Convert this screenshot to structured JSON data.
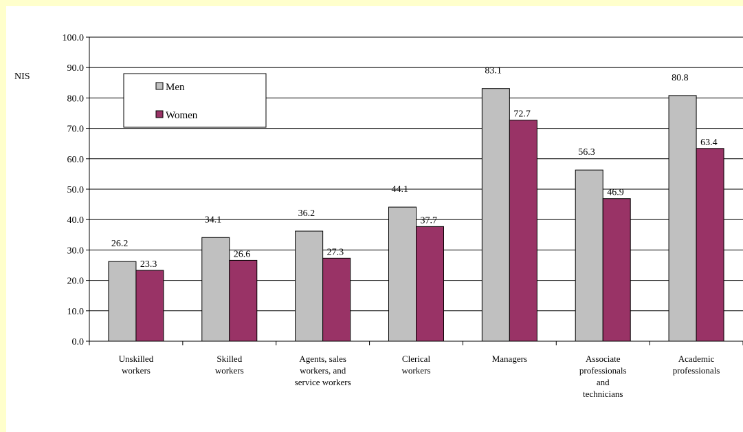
{
  "chart_data": {
    "type": "bar",
    "ylabel": "NIS",
    "ylim": [
      0,
      100
    ],
    "ytick_step": 10,
    "ytick_labels": [
      "0.0",
      "10.0",
      "20.0",
      "30.0",
      "40.0",
      "50.0",
      "60.0",
      "70.0",
      "80.0",
      "90.0",
      "100.0"
    ],
    "grid": true,
    "legend_position": "top-left",
    "categories": [
      [
        "Unskilled",
        "workers"
      ],
      [
        "Skilled",
        "workers"
      ],
      [
        "Agents, sales",
        "workers, and",
        "service workers"
      ],
      [
        "Clerical",
        "workers"
      ],
      [
        "Managers"
      ],
      [
        "Associate",
        "professionals",
        "and",
        "technicians"
      ],
      [
        "Academic",
        "professionals"
      ]
    ],
    "series": [
      {
        "name": "Men",
        "color": "#C0C0C0",
        "values": [
          26.2,
          34.1,
          36.2,
          44.1,
          83.1,
          56.3,
          80.8
        ],
        "labels": [
          "26.2",
          "34.1",
          "36.2",
          "44.1",
          "83.1",
          "56.3",
          "80.8"
        ]
      },
      {
        "name": "Women",
        "color": "#993366",
        "values": [
          23.3,
          26.6,
          27.3,
          37.7,
          72.7,
          46.9,
          63.4
        ],
        "labels": [
          "23.3",
          "26.6",
          "27.3",
          "37.7",
          "72.7",
          "46.9",
          "63.4"
        ]
      }
    ]
  }
}
